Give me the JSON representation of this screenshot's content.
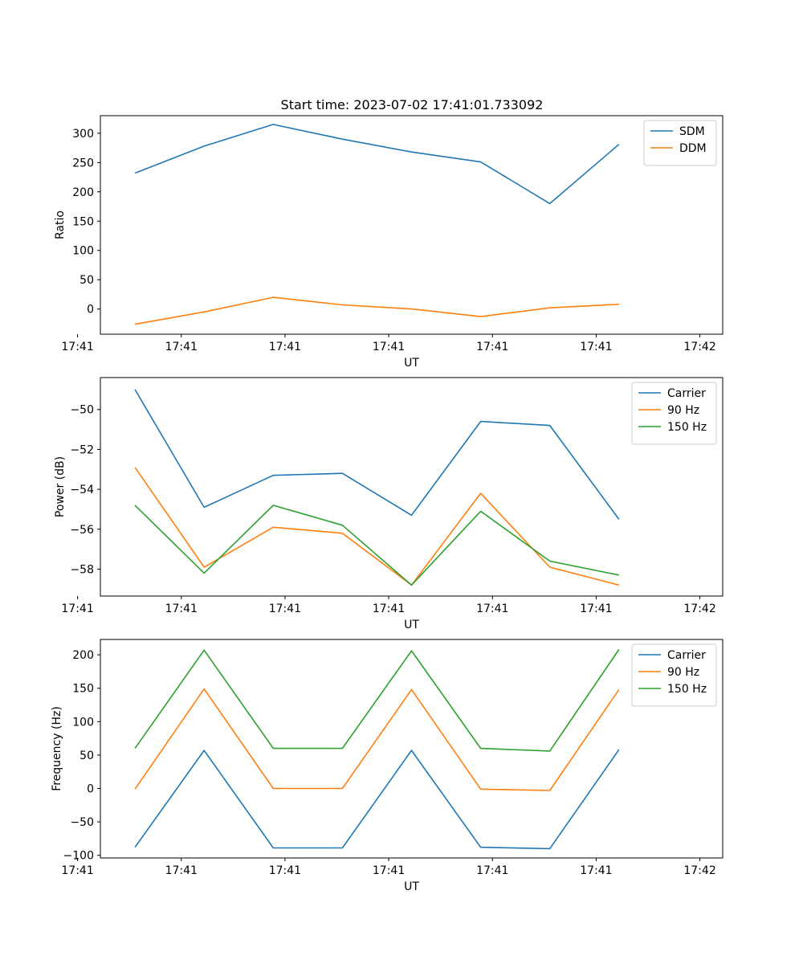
{
  "figure_title": "Start time: 2023-07-02 17:41:01.733092",
  "chart_data": [
    {
      "type": "line",
      "title": "Start time: 2023-07-02 17:41:01.733092",
      "xlabel": "UT",
      "ylabel": "Ratio",
      "x": [
        1,
        2,
        3,
        4,
        5,
        6,
        7,
        8
      ],
      "xlim": [
        0.5,
        9.5
      ],
      "xticks": [
        0.17,
        1.67,
        3.17,
        4.67,
        6.17,
        7.67,
        9.17
      ],
      "xtick_labels": [
        "17:41",
        "17:41",
        "17:41",
        "17:41",
        "17:41",
        "17:41",
        "17:42"
      ],
      "ylim": [
        -43,
        330
      ],
      "yticks": [
        0,
        50,
        100,
        150,
        200,
        250,
        300
      ],
      "legend_position": "top-right",
      "series": [
        {
          "name": "SDM",
          "color": "#1f77b4",
          "values": [
            232,
            278,
            315,
            290,
            268,
            251,
            180,
            281
          ]
        },
        {
          "name": "DDM",
          "color": "#ff7f0e",
          "values": [
            -26,
            -5,
            20,
            7,
            0,
            -13,
            2,
            8
          ]
        }
      ]
    },
    {
      "type": "line",
      "title": "",
      "xlabel": "UT",
      "ylabel": "Power (dB)",
      "x": [
        1,
        2,
        3,
        4,
        5,
        6,
        7,
        8
      ],
      "xlim": [
        0.5,
        9.5
      ],
      "xticks": [
        0.17,
        1.67,
        3.17,
        4.67,
        6.17,
        7.67,
        9.17
      ],
      "xtick_labels": [
        "17:41",
        "17:41",
        "17:41",
        "17:41",
        "17:41",
        "17:41",
        "17:42"
      ],
      "ylim": [
        -59.35,
        -48.4
      ],
      "yticks": [
        -58,
        -56,
        -54,
        -52,
        -50
      ],
      "legend_position": "top-right",
      "series": [
        {
          "name": "Carrier",
          "color": "#1f77b4",
          "values": [
            -49.0,
            -54.9,
            -53.3,
            -53.2,
            -55.3,
            -50.6,
            -50.8,
            -55.5
          ]
        },
        {
          "name": "90 Hz",
          "color": "#ff7f0e",
          "values": [
            -52.9,
            -57.9,
            -55.9,
            -56.2,
            -58.8,
            -54.2,
            -57.9,
            -58.8
          ]
        },
        {
          "name": "150 Hz",
          "color": "#2ca02c",
          "values": [
            -54.8,
            -58.2,
            -54.8,
            -55.8,
            -58.8,
            -55.1,
            -57.6,
            -58.3
          ]
        }
      ]
    },
    {
      "type": "line",
      "title": "",
      "xlabel": "UT",
      "ylabel": "Frequency (Hz)",
      "x": [
        1,
        2,
        3,
        4,
        5,
        6,
        7,
        8
      ],
      "xlim": [
        0.5,
        9.5
      ],
      "xticks": [
        0.17,
        1.67,
        3.17,
        4.67,
        6.17,
        7.67,
        9.17
      ],
      "xtick_labels": [
        "17:41",
        "17:41",
        "17:41",
        "17:41",
        "17:41",
        "17:41",
        "17:42"
      ],
      "ylim": [
        -104,
        223
      ],
      "yticks": [
        -100,
        -50,
        0,
        50,
        100,
        150,
        200
      ],
      "legend_position": "top-right",
      "series": [
        {
          "name": "Carrier",
          "color": "#1f77b4",
          "values": [
            -88,
            57,
            -89,
            -89,
            57,
            -88,
            -90,
            58
          ]
        },
        {
          "name": "90 Hz",
          "color": "#ff7f0e",
          "values": [
            -1,
            149,
            0,
            0,
            148,
            -1,
            -3,
            148
          ]
        },
        {
          "name": "150 Hz",
          "color": "#2ca02c",
          "values": [
            60,
            207,
            60,
            60,
            206,
            60,
            56,
            208
          ]
        }
      ]
    }
  ]
}
